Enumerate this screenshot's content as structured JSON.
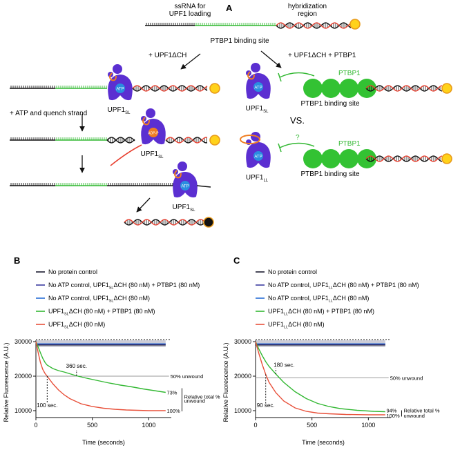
{
  "panel_a": {
    "letter": "A",
    "top_label_left_1": "ssRNA for",
    "top_label_left_2": "UPF1 loading",
    "top_label_right_1": "hybridization",
    "top_label_right_2": "region",
    "ptbp1_site_top": "PTBP1 binding site",
    "arrow_left_label": "+ UPF1ΔCH",
    "arrow_right_label": "+ UPF1ΔCH + PTBP1",
    "atp_quench": "+ ATP and quench strand",
    "atp": "ATP",
    "adp": "ADP-P",
    "upf1_sl": "UPF1",
    "sub_sl": "SL",
    "sub_ll": "LL",
    "ptbp1": "PTBP1",
    "ptbp1_site": "PTBP1 binding site",
    "vs": "VS.",
    "question": "?"
  },
  "chart_data": [
    {
      "type": "line",
      "panel": "B",
      "xlabel": "Time (seconds)",
      "ylabel": "Relative Fluorescence (A.U.)",
      "xlim": [
        0,
        1200
      ],
      "ylim": [
        8000,
        30000
      ],
      "xticks": [
        "0",
        "500",
        "1000"
      ],
      "yticks": [
        "10000",
        "20000",
        "30000"
      ],
      "legend": [
        {
          "name": "No protein control",
          "color": "#1a1a2e"
        },
        {
          "name": "No ATP control, UPF1",
          "sub": "SL",
          "suffix": "ΔCH (80 nM) + PTBP1 (80 nM)",
          "color": "#3a3aa0"
        },
        {
          "name": "No ATP control, UPF1",
          "sub": "SL",
          "suffix": "ΔCH (80 nM)",
          "color": "#2a6fd6"
        },
        {
          "name": "UPF1",
          "sub": "SL",
          "suffix": "ΔCH (80 nM) + PTBP1 (80 nM)",
          "color": "#33b833"
        },
        {
          "name": "UPF1",
          "sub": "SL",
          "suffix": "ΔCH (80 nM)",
          "color": "#e8503a"
        }
      ],
      "series": [
        {
          "name": "UPF1SLΔCH (80 nM) + PTBP1 (80 nM)",
          "color": "#33b833",
          "x": [
            0,
            20,
            40,
            60,
            80,
            100,
            150,
            200,
            250,
            300,
            360,
            450,
            550,
            650,
            750,
            850,
            950,
            1050,
            1150
          ],
          "values": [
            30000,
            28400,
            26800,
            25200,
            24000,
            23200,
            22200,
            21600,
            21200,
            20700,
            20100,
            19400,
            18700,
            18000,
            17400,
            16900,
            16300,
            15800,
            15300
          ]
        },
        {
          "name": "UPF1SLΔCH (80 nM)",
          "color": "#e8503a",
          "x": [
            0,
            20,
            40,
            60,
            80,
            100,
            150,
            200,
            250,
            300,
            400,
            500,
            600,
            700,
            800,
            900,
            1000,
            1150
          ],
          "values": [
            30000,
            26800,
            24000,
            22000,
            20800,
            20000,
            17800,
            16000,
            14600,
            13500,
            12000,
            11200,
            10700,
            10400,
            10200,
            10100,
            10000,
            10000
          ]
        }
      ],
      "annotations": [
        "360 sec.",
        "100 sec.",
        "50% unwound",
        "73%",
        "100%",
        "Relative total %",
        "unwound"
      ]
    },
    {
      "type": "line",
      "panel": "C",
      "xlabel": "Time (seconds)",
      "ylabel": "Relative Fluorescence (A.U.)",
      "xlim": [
        0,
        1200
      ],
      "ylim": [
        8000,
        30000
      ],
      "xticks": [
        "0",
        "500",
        "1000"
      ],
      "yticks": [
        "10000",
        "20000",
        "30000"
      ],
      "legend": [
        {
          "name": "No protein control",
          "color": "#1a1a2e"
        },
        {
          "name": "No ATP control, UPF1",
          "sub": "LL",
          "suffix": "ΔCH (80 nM) + PTBP1 (80 nM)",
          "color": "#3a3aa0"
        },
        {
          "name": "No ATP control, UPF1",
          "sub": "LL",
          "suffix": "ΔCH (80 nM)",
          "color": "#2a6fd6"
        },
        {
          "name": "UPF1",
          "sub": "LL",
          "suffix": "ΔCH (80 nM) + PTBP1 (80 nM)",
          "color": "#33b833"
        },
        {
          "name": "UPF1",
          "sub": "LL",
          "suffix": "ΔCH (80 nM)",
          "color": "#e8503a"
        }
      ],
      "series": [
        {
          "name": "UPF1LLΔCH (80 nM) + PTBP1 (80 nM)",
          "color": "#33b833",
          "x": [
            0,
            30,
            60,
            90,
            120,
            180,
            250,
            350,
            450,
            550,
            650,
            750,
            900,
            1050,
            1150
          ],
          "values": [
            30000,
            27800,
            25900,
            24200,
            22800,
            20600,
            18200,
            15500,
            13500,
            12100,
            11200,
            10600,
            10100,
            9800,
            9700
          ]
        },
        {
          "name": "UPF1LLΔCH (80 nM)",
          "color": "#e8503a",
          "x": [
            0,
            30,
            60,
            90,
            120,
            180,
            250,
            350,
            450,
            550,
            650,
            800,
            1000,
            1150
          ],
          "values": [
            30000,
            26500,
            23300,
            20500,
            18200,
            15200,
            12800,
            10800,
            9800,
            9300,
            9100,
            8900,
            8800,
            8800
          ]
        }
      ],
      "annotations": [
        "180 sec.",
        "90 sec.",
        "50% unwound",
        "94%",
        "100%",
        "Relative total %",
        "unwound"
      ]
    }
  ]
}
